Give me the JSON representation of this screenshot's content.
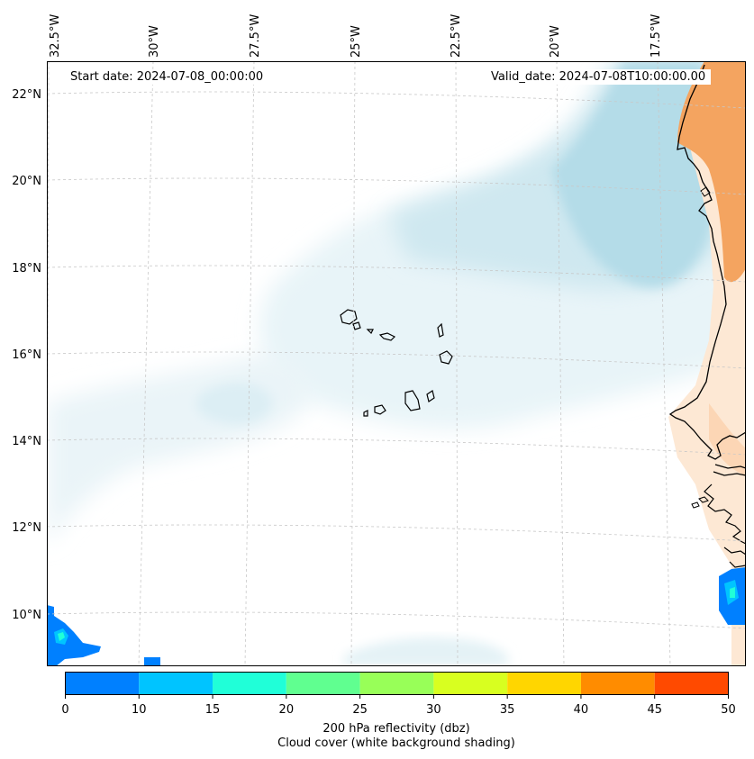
{
  "map": {
    "title_start": "Start date: 2024-07-08_00:00:00",
    "title_valid": "Valid_date: 2024-07-08T10:00:00.00",
    "lon_labels": [
      "32.5°W",
      "30°W",
      "27.5°W",
      "25°W",
      "22.5°W",
      "20°W",
      "17.5°W"
    ],
    "lat_labels": [
      "22°N",
      "20°N",
      "18°N",
      "16°N",
      "14°N",
      "12°N",
      "10°N"
    ],
    "colors": {
      "ocean": "#ffffff",
      "cloud_light": "#eaf4f8",
      "cloud_mid": "#cfe8f0",
      "cloud_dense": "#b4dce8",
      "land": "#f4a460",
      "land_light": "#fbd9bd",
      "coast": "#000000",
      "grid": "#c8c8c8"
    }
  },
  "colorbar": {
    "ticks": [
      "0",
      "10",
      "15",
      "20",
      "25",
      "30",
      "35",
      "40",
      "45",
      "50"
    ],
    "colors": [
      "#0080ff",
      "#00c4ff",
      "#20ffd8",
      "#60ff90",
      "#98ff58",
      "#d8ff20",
      "#ffd600",
      "#ff8c00",
      "#ff4a00"
    ],
    "label_line1": "200 hPa reflectivity (dbz)",
    "label_line2": "Cloud cover (white background shading)"
  }
}
